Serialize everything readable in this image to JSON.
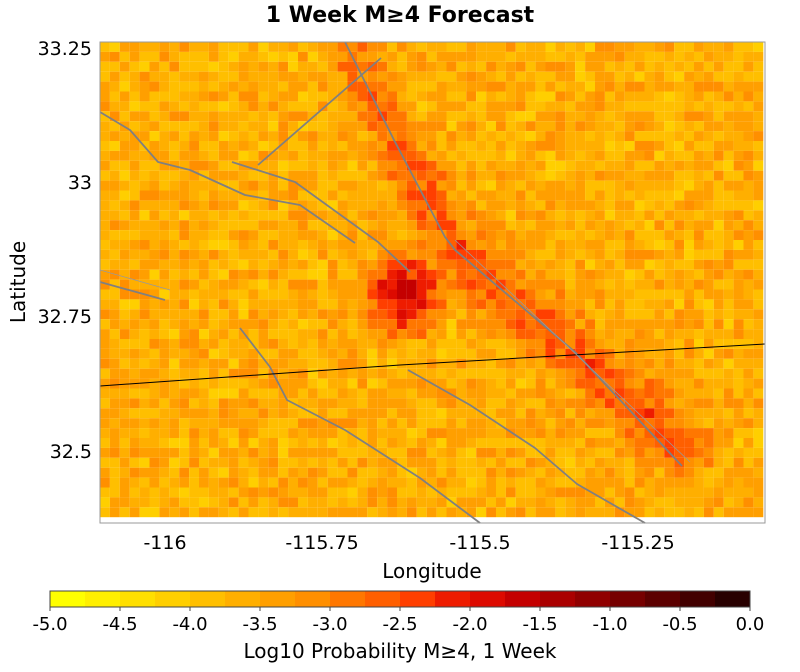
{
  "title": "1 Week M≥4 Forecast",
  "x_axis": {
    "label": "Longitude",
    "ticks": [
      "-116",
      "-115.75",
      "-115.5",
      "-115.25"
    ],
    "tick_values": [
      -116,
      -115.75,
      -115.5,
      -115.25
    ],
    "range": [
      -116.05,
      -115.0
    ]
  },
  "y_axis": {
    "label": "Latitude",
    "ticks": [
      "33.25",
      "33",
      "32.75",
      "32.5"
    ],
    "tick_values": [
      33.25,
      33.0,
      32.75,
      32.5
    ],
    "range": [
      32.4,
      33.26
    ]
  },
  "colorbar": {
    "label": "Log10 Probability M≥4, 1 Week",
    "ticks": [
      "-5.0",
      "-4.5",
      "-4.0",
      "-3.5",
      "-3.0",
      "-2.5",
      "-2.0",
      "-1.5",
      "-1.0",
      "-0.5",
      "0.0"
    ],
    "tick_values": [
      -5.0,
      -4.5,
      -4.0,
      -3.5,
      -3.0,
      -2.5,
      -2.0,
      -1.5,
      -1.0,
      -0.5,
      0.0
    ],
    "colors": [
      "#ffff00",
      "#ffef00",
      "#ffdf00",
      "#ffcf00",
      "#ffbf00",
      "#ffaf00",
      "#ff9f00",
      "#ff8f00",
      "#ff7700",
      "#ff5f00",
      "#ff3f00",
      "#ee1c00",
      "#dd0a00",
      "#c40000",
      "#aa0000",
      "#900000",
      "#760000",
      "#5c0000",
      "#420000",
      "#280000"
    ]
  },
  "chart_data": {
    "type": "heatmap",
    "colormap": "yellow-red-black",
    "value_scale": "log10 probability",
    "vmin": -5.0,
    "vmax": 0.0,
    "peak": {
      "lon": -115.57,
      "lat": 32.81,
      "value": -1.9
    },
    "cluster_trend": "NW-SE along faults, densest near -115.57, 32.81"
  }
}
